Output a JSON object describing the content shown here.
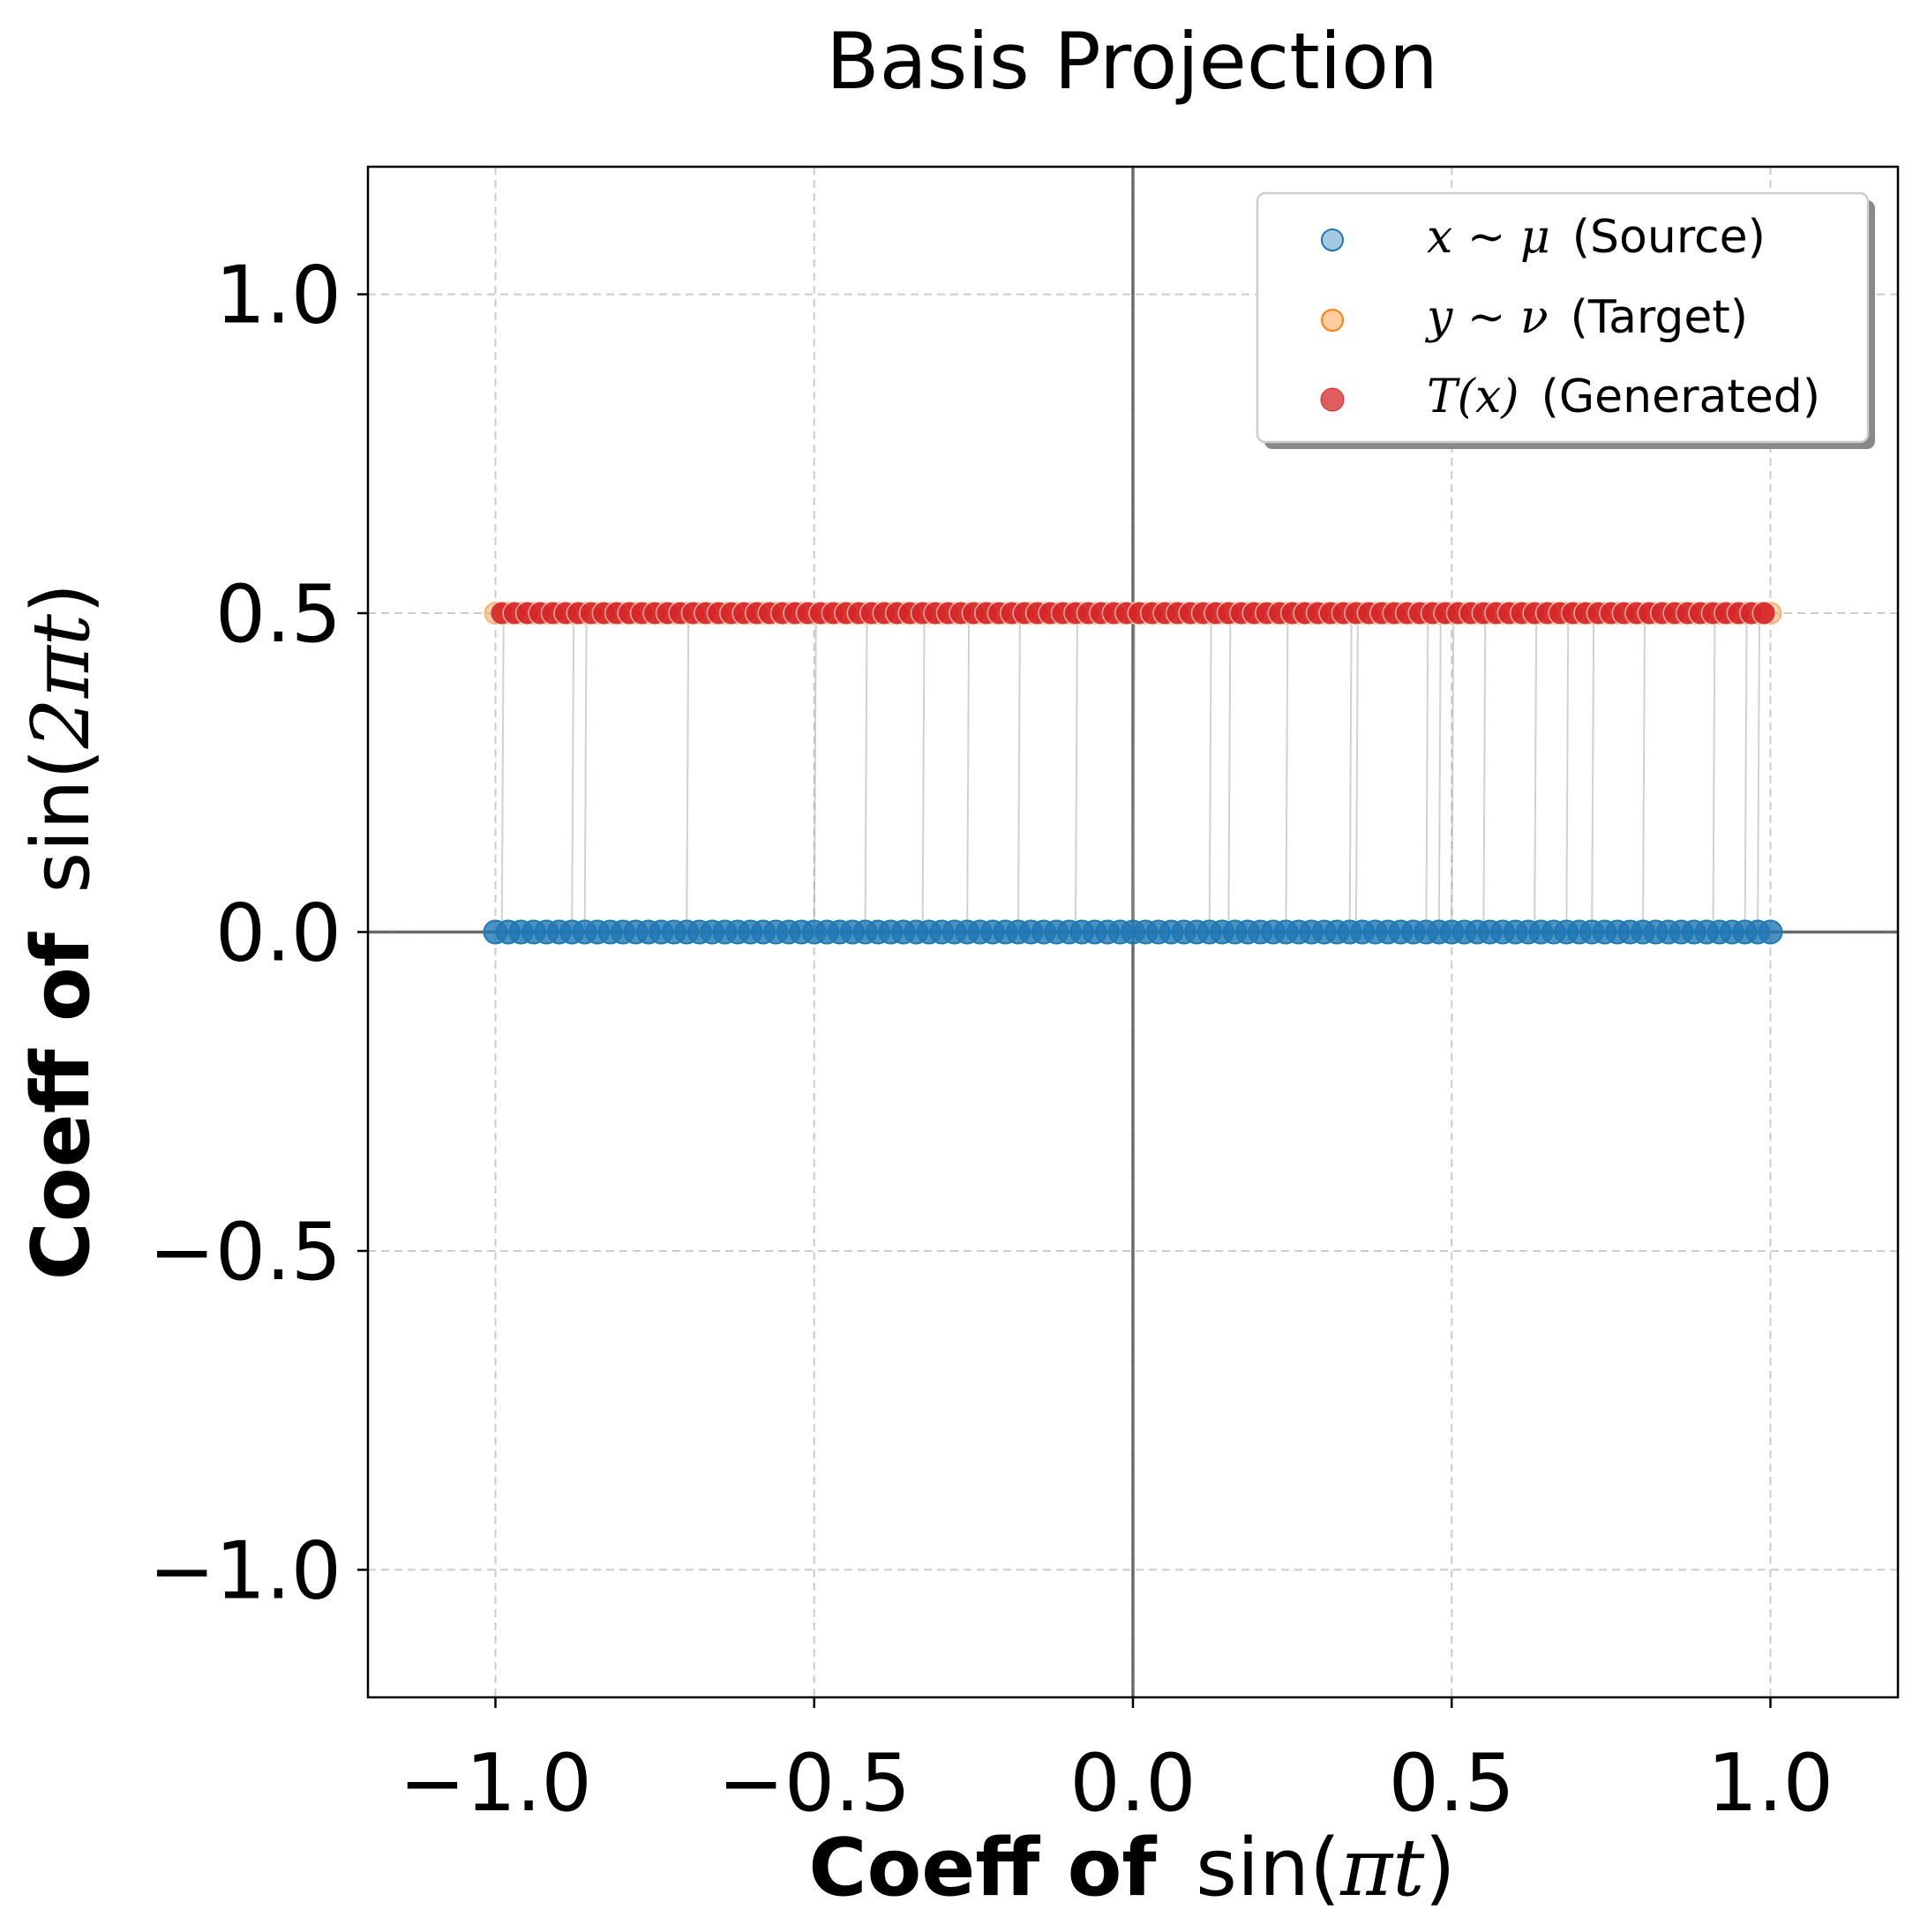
{
  "chart_data": {
    "type": "scatter",
    "title": "Basis Projection",
    "xlabel": {
      "bold": "Coeff of",
      "fn": "sin(",
      "var": "πt",
      "close": ")"
    },
    "ylabel": {
      "bold": "Coeff of",
      "fn": "sin(",
      "var": "2πt",
      "close": ")"
    },
    "xlim": [
      -1.2,
      1.2
    ],
    "ylim": [
      -1.2,
      1.2
    ],
    "xticks": [
      -1.0,
      -0.5,
      0.0,
      0.5,
      1.0
    ],
    "yticks": [
      -1.0,
      -0.5,
      0.0,
      0.5,
      1.0
    ],
    "xtick_labels": [
      "−1.0",
      "−0.5",
      "0.0",
      "0.5",
      "1.0"
    ],
    "ytick_labels": [
      "−1.0",
      "−0.5",
      "0.0",
      "0.5",
      "1.0"
    ],
    "grid": true,
    "reference_lines": {
      "x": 0,
      "y": 0
    },
    "legend": {
      "position": "top-right",
      "entries": [
        {
          "math": "x ~ μ",
          "text": "(Source)",
          "color": "#1f77b4"
        },
        {
          "math": "y ~ ν",
          "text": "(Target)",
          "color": "#ff7f0e"
        },
        {
          "math": "T(x)",
          "text": "(Generated)",
          "color": "#d62728"
        }
      ]
    },
    "colors": {
      "source": "#1f77b4",
      "target": "#ff7f0e",
      "generated": "#d62728",
      "link": "#999999"
    },
    "series": [
      {
        "name": "x ~ μ (Source)",
        "y": 0.0,
        "x": [
          -1.0,
          -0.98,
          -0.96,
          -0.94,
          -0.92,
          -0.9,
          -0.88,
          -0.86,
          -0.84,
          -0.82,
          -0.8,
          -0.78,
          -0.76,
          -0.74,
          -0.72,
          -0.7,
          -0.68,
          -0.66,
          -0.64,
          -0.62,
          -0.6,
          -0.58,
          -0.56,
          -0.54,
          -0.52,
          -0.5,
          -0.48,
          -0.46,
          -0.44,
          -0.42,
          -0.4,
          -0.38,
          -0.36,
          -0.34,
          -0.32,
          -0.3,
          -0.28,
          -0.26,
          -0.24,
          -0.22,
          -0.2,
          -0.18,
          -0.16,
          -0.14,
          -0.12,
          -0.1,
          -0.08,
          -0.06,
          -0.04,
          -0.02,
          0.0,
          0.02,
          0.04,
          0.06,
          0.08,
          0.1,
          0.12,
          0.14,
          0.16,
          0.18,
          0.2,
          0.22,
          0.24,
          0.26,
          0.28,
          0.3,
          0.32,
          0.34,
          0.36,
          0.38,
          0.4,
          0.42,
          0.44,
          0.46,
          0.48,
          0.5,
          0.52,
          0.54,
          0.56,
          0.58,
          0.6,
          0.62,
          0.64,
          0.66,
          0.68,
          0.7,
          0.72,
          0.74,
          0.76,
          0.78,
          0.8,
          0.82,
          0.84,
          0.86,
          0.88,
          0.9,
          0.92,
          0.94,
          0.96,
          0.98,
          1.0
        ]
      },
      {
        "name": "y ~ ν (Target)",
        "y": 0.5,
        "x": [
          -1.0,
          -0.98,
          -0.96,
          -0.94,
          -0.92,
          -0.9,
          -0.88,
          -0.86,
          -0.84,
          -0.82,
          -0.8,
          -0.78,
          -0.76,
          -0.74,
          -0.72,
          -0.7,
          -0.68,
          -0.66,
          -0.64,
          -0.62,
          -0.6,
          -0.58,
          -0.56,
          -0.54,
          -0.52,
          -0.5,
          -0.48,
          -0.46,
          -0.44,
          -0.42,
          -0.4,
          -0.38,
          -0.36,
          -0.34,
          -0.32,
          -0.3,
          -0.28,
          -0.26,
          -0.24,
          -0.22,
          -0.2,
          -0.18,
          -0.16,
          -0.14,
          -0.12,
          -0.1,
          -0.08,
          -0.06,
          -0.04,
          -0.02,
          0.0,
          0.02,
          0.04,
          0.06,
          0.08,
          0.1,
          0.12,
          0.14,
          0.16,
          0.18,
          0.2,
          0.22,
          0.24,
          0.26,
          0.28,
          0.3,
          0.32,
          0.34,
          0.36,
          0.38,
          0.4,
          0.42,
          0.44,
          0.46,
          0.48,
          0.5,
          0.52,
          0.54,
          0.56,
          0.58,
          0.6,
          0.62,
          0.64,
          0.66,
          0.68,
          0.7,
          0.72,
          0.74,
          0.76,
          0.78,
          0.8,
          0.82,
          0.84,
          0.86,
          0.88,
          0.9,
          0.92,
          0.94,
          0.96,
          0.98,
          1.0
        ]
      },
      {
        "name": "T(x) (Generated)",
        "y": 0.5,
        "x": [
          -0.99,
          -0.97,
          -0.95,
          -0.93,
          -0.91,
          -0.89,
          -0.87,
          -0.85,
          -0.83,
          -0.81,
          -0.79,
          -0.77,
          -0.75,
          -0.73,
          -0.71,
          -0.69,
          -0.67,
          -0.65,
          -0.63,
          -0.61,
          -0.59,
          -0.57,
          -0.55,
          -0.53,
          -0.51,
          -0.49,
          -0.47,
          -0.45,
          -0.43,
          -0.41,
          -0.39,
          -0.37,
          -0.35,
          -0.33,
          -0.31,
          -0.29,
          -0.27,
          -0.25,
          -0.23,
          -0.21,
          -0.19,
          -0.17,
          -0.15,
          -0.13,
          -0.11,
          -0.09,
          -0.07,
          -0.05,
          -0.03,
          -0.01,
          0.01,
          0.03,
          0.05,
          0.07,
          0.09,
          0.11,
          0.13,
          0.15,
          0.17,
          0.19,
          0.21,
          0.23,
          0.25,
          0.27,
          0.29,
          0.31,
          0.33,
          0.35,
          0.37,
          0.39,
          0.41,
          0.43,
          0.45,
          0.47,
          0.49,
          0.51,
          0.53,
          0.55,
          0.57,
          0.59,
          0.61,
          0.63,
          0.65,
          0.67,
          0.69,
          0.71,
          0.73,
          0.75,
          0.77,
          0.79,
          0.81,
          0.83,
          0.85,
          0.87,
          0.89,
          0.91,
          0.93,
          0.95,
          0.97,
          0.99
        ]
      },
      {
        "name": "transport links",
        "from_y": 0.0,
        "to_y": 0.5,
        "x": [
          -0.99,
          -0.88,
          -0.86,
          -0.7,
          -0.5,
          -0.42,
          -0.33,
          -0.26,
          -0.18,
          -0.09,
          0.0,
          0.12,
          0.15,
          0.24,
          0.34,
          0.35,
          0.46,
          0.48,
          0.5,
          0.55,
          0.63,
          0.68,
          0.72,
          0.8,
          0.91,
          0.96,
          0.98
        ]
      }
    ]
  }
}
